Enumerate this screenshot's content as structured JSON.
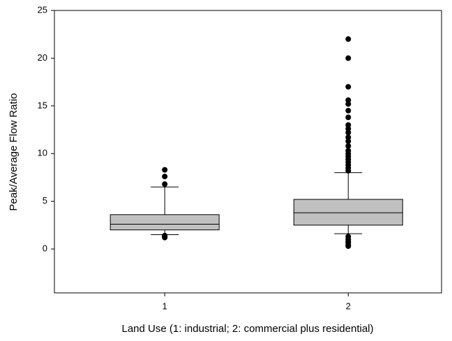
{
  "chart_data": {
    "type": "box",
    "x_label": "Land Use (1: industrial; 2: commercial plus residential)",
    "y_label": "Peak/Average Flow Ratio",
    "categories": [
      "1",
      "2"
    ],
    "color": "#c0c0c0",
    "boxes": [
      {
        "min": 1.5,
        "q1": 2.0,
        "median": 2.6,
        "q3": 3.6,
        "max": 6.5,
        "outliers": [
          8.3,
          7.6,
          6.8,
          1.4,
          1.3,
          1.2
        ]
      },
      {
        "min": 1.6,
        "q1": 2.5,
        "median": 3.8,
        "q3": 5.2,
        "max": 8.0,
        "outliers": [
          22.0,
          20.0,
          17.0,
          15.6,
          15.2,
          14.5,
          13.8,
          13.0,
          12.6,
          12.2,
          11.7,
          11.3,
          10.8,
          10.3,
          10.0,
          9.7,
          9.4,
          9.1,
          8.8,
          8.5,
          8.2,
          1.3,
          1.0,
          0.8,
          0.6,
          0.4,
          0.3
        ]
      }
    ],
    "ylim": [
      -4.6,
      25
    ],
    "yticks": [
      0,
      5,
      10,
      15,
      20,
      25
    ]
  }
}
